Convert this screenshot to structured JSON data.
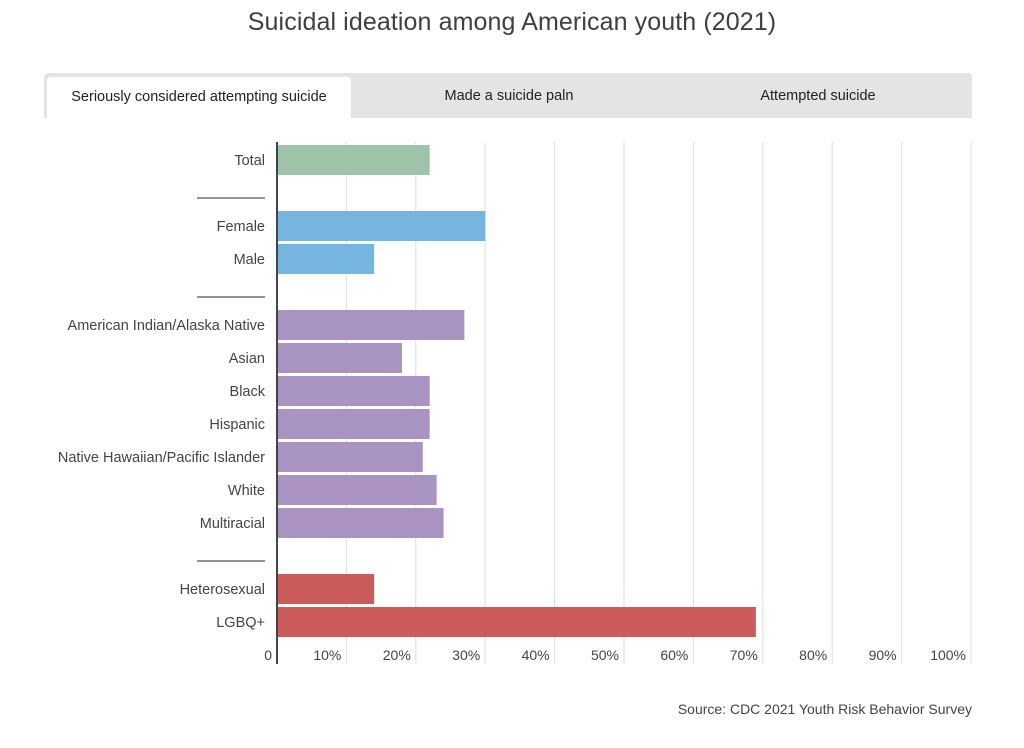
{
  "title": "Suicidal ideation among American youth (2021)",
  "tabs": [
    {
      "label": "Seriously considered attempting suicide",
      "active": true
    },
    {
      "label": "Made a suicide paln",
      "active": false
    },
    {
      "label": "Attempted suicide",
      "active": false
    }
  ],
  "source": "Source: CDC 2021 Youth Risk Behavior Survey",
  "colors": {
    "total": "#9dc4a8",
    "sex": "#77b5e1",
    "race": "#a893c3",
    "orientation": "#cc5c5b",
    "grid": "#dddddd",
    "axis": "#444444",
    "text": "#444444"
  },
  "chart_data": {
    "type": "bar",
    "orientation": "horizontal",
    "title": "Suicidal ideation among American youth (2021)",
    "subtitle": "Seriously considered attempting suicide",
    "xlabel": "",
    "ylabel": "",
    "xlim": [
      0,
      100
    ],
    "x_ticks": [
      "0",
      "10%",
      "20%",
      "30%",
      "40%",
      "50%",
      "60%",
      "70%",
      "80%",
      "90%",
      "100%"
    ],
    "grid": true,
    "groups": [
      {
        "name": "total",
        "color_key": "total",
        "categories": [
          "Total"
        ],
        "values": [
          22
        ]
      },
      {
        "name": "sex",
        "color_key": "sex",
        "categories": [
          "Female",
          "Male"
        ],
        "values": [
          30,
          14
        ]
      },
      {
        "name": "race",
        "color_key": "race",
        "categories": [
          "American Indian/Alaska Native",
          "Asian",
          "Black",
          "Hispanic",
          "Native Hawaiian/Pacific Islander",
          "White",
          "Multiracial"
        ],
        "values": [
          27,
          18,
          22,
          22,
          21,
          23,
          24
        ]
      },
      {
        "name": "orientation",
        "color_key": "orientation",
        "categories": [
          "Heterosexual",
          "LGBQ+"
        ],
        "values": [
          14,
          69
        ]
      }
    ],
    "source": "Source: CDC 2021 Youth Risk Behavior Survey"
  }
}
